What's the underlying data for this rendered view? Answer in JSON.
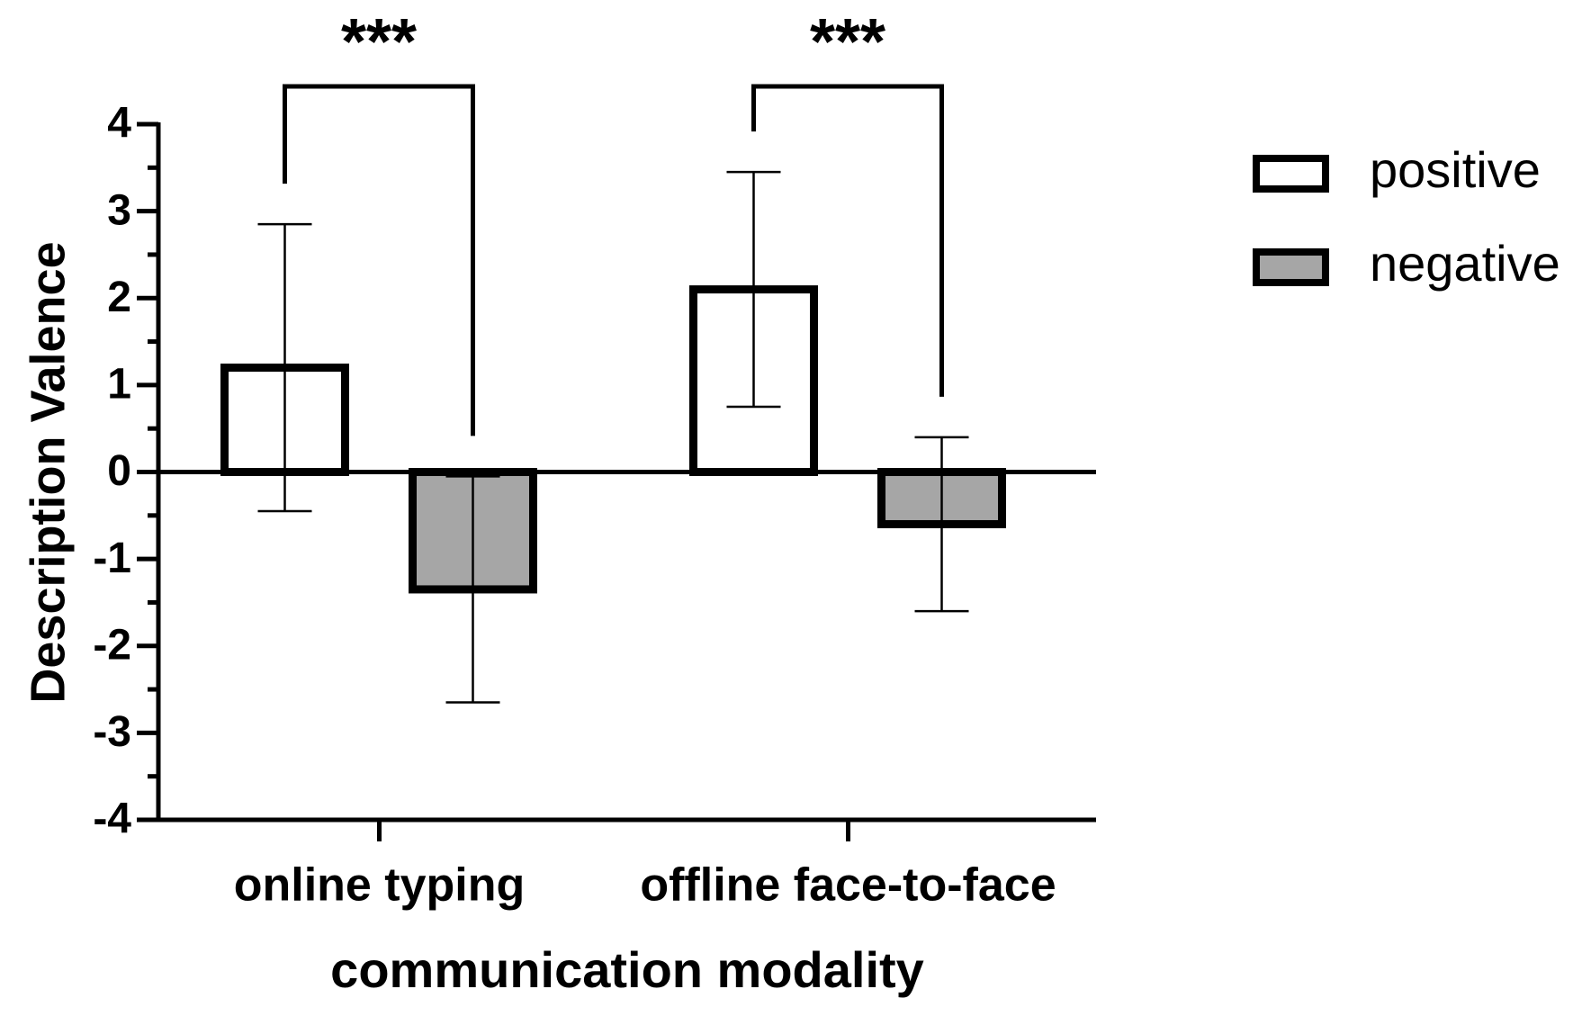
{
  "chart_data": {
    "type": "bar",
    "y_label": "Description Valence",
    "x_label": "communication modality",
    "categories": [
      "online typing",
      "offline face-to-face"
    ],
    "series": [
      {
        "name": "positive",
        "color": "#ffffff",
        "values": [
          1.2,
          2.1
        ],
        "errors": [
          1.65,
          1.35
        ]
      },
      {
        "name": "negative",
        "color": "#a6a6a6",
        "values": [
          -1.35,
          -0.6
        ],
        "errors": [
          1.3,
          1.0
        ]
      }
    ],
    "significance": [
      "***",
      "***"
    ],
    "ylim": [
      -4,
      4
    ],
    "yticks": [
      4,
      3,
      2,
      1,
      0,
      -1,
      -2,
      -3,
      -4
    ],
    "legend": "right"
  }
}
